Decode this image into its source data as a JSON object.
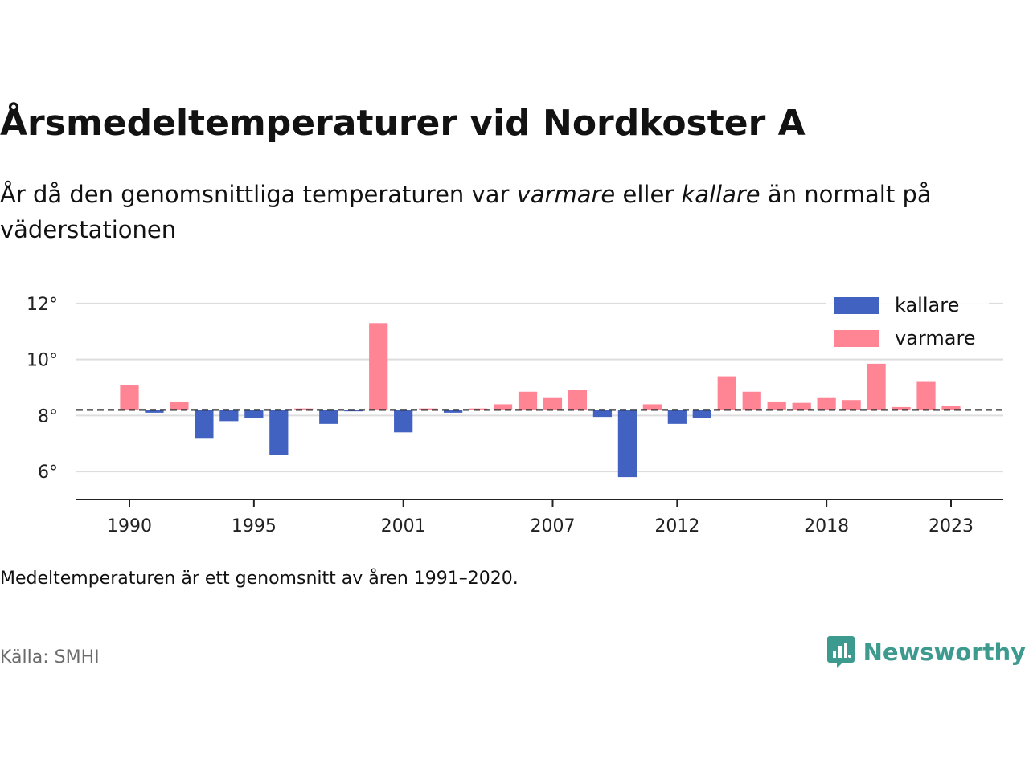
{
  "title": "Årsmedeltemperaturer vid Nordkoster A",
  "subtitle": {
    "part1": "År då den genomsnittliga temperaturen var ",
    "em1": "varmare",
    "part2": " eller ",
    "em2": "kallare",
    "part3": " än normalt på väderstationen"
  },
  "note": "Medeltemperaturen är ett genomsnitt av åren 1991–2020.",
  "source": "Källa: SMHI",
  "brand": {
    "name": "Newsworthy",
    "icon": "newsworthy-logo-icon",
    "color": "#3d9a8f"
  },
  "colors": {
    "kallare": "#4262c2",
    "varmare": "#ff8595",
    "grid": "#dddddd",
    "axis": "#222222",
    "baseline": "#333333"
  },
  "chart_data": {
    "type": "bar",
    "x": [
      1990,
      1991,
      1992,
      1993,
      1994,
      1995,
      1996,
      1997,
      1998,
      1999,
      2000,
      2001,
      2002,
      2003,
      2004,
      2005,
      2006,
      2007,
      2008,
      2009,
      2010,
      2011,
      2012,
      2013,
      2014,
      2015,
      2016,
      2017,
      2018,
      2019,
      2020,
      2021,
      2022,
      2023
    ],
    "values": [
      9.1,
      8.1,
      8.5,
      7.2,
      7.8,
      7.9,
      6.6,
      8.25,
      7.7,
      8.15,
      11.3,
      7.4,
      8.25,
      8.1,
      8.25,
      8.4,
      8.85,
      8.65,
      8.9,
      7.95,
      5.8,
      8.4,
      7.7,
      7.9,
      9.4,
      8.85,
      8.5,
      8.45,
      8.65,
      8.55,
      9.85,
      8.3,
      9.2,
      8.35
    ],
    "baseline": 8.2,
    "ylim": [
      5,
      12.8
    ],
    "yticks": [
      6,
      8,
      10,
      12
    ],
    "ytick_labels": [
      "6°",
      "8°",
      "10°",
      "12°"
    ],
    "xticks": [
      1990,
      1995,
      2001,
      2007,
      2012,
      2018,
      2023
    ],
    "xtick_labels": [
      "1990",
      "1995",
      "2001",
      "2007",
      "2012",
      "2018",
      "2023"
    ],
    "series": [
      {
        "name": "kallare"
      },
      {
        "name": "varmare"
      }
    ],
    "legend_position": "top-right",
    "grid": true
  }
}
